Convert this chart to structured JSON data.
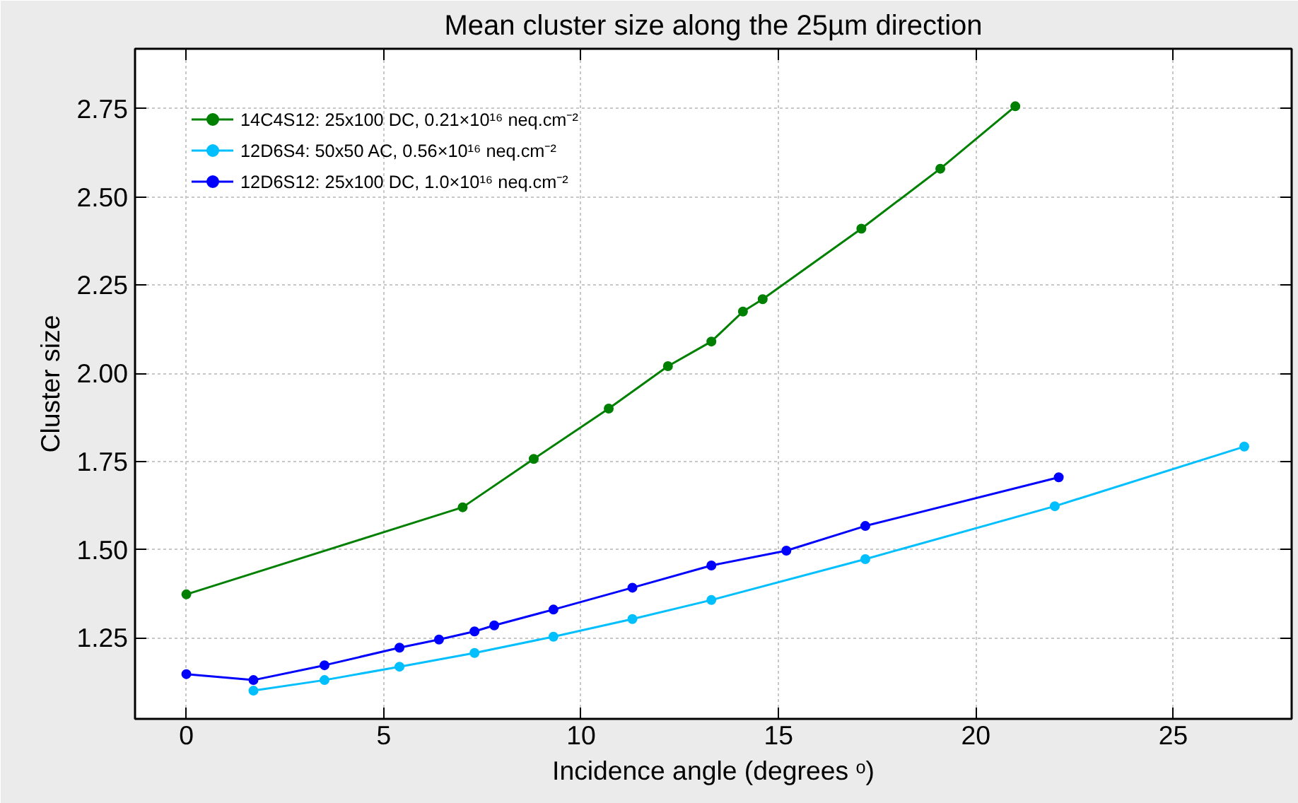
{
  "chart_data": {
    "type": "line",
    "title": "Mean cluster size along the 25µm direction",
    "xlabel": "Incidence angle (degrees ᵒ)",
    "ylabel": "Cluster size",
    "xlim": [
      -1.3,
      28.0
    ],
    "ylim": [
      1.02,
      2.92
    ],
    "xticks": [
      0,
      5,
      10,
      15,
      20,
      25
    ],
    "yticks": [
      {
        "value": 1.25,
        "label": "1.25"
      },
      {
        "value": 1.5,
        "label": "1.50"
      },
      {
        "value": 1.75,
        "label": "1.75"
      },
      {
        "value": 2.0,
        "label": "2.00"
      },
      {
        "value": 2.25,
        "label": "2.25"
      },
      {
        "value": 2.5,
        "label": "2.50"
      },
      {
        "value": 2.75,
        "label": "2.75"
      }
    ],
    "grid": true,
    "legend": "top left",
    "marker": "circle",
    "line_style": "solid",
    "series": [
      {
        "name": "14C4S12: 25x100 DC, 0.21×10¹⁶ neq.cm⁻²",
        "color": "#008000",
        "x": [
          0,
          7.0,
          8.8,
          10.7,
          12.2,
          13.3,
          14.1,
          14.6,
          17.1,
          19.1,
          21.0
        ],
        "values": [
          1.373,
          1.62,
          1.757,
          1.9,
          2.02,
          2.09,
          2.175,
          2.21,
          2.41,
          2.58,
          2.757
        ]
      },
      {
        "name": "12D6S4: 50x50 AC, 0.56×10¹⁶ neq.cm⁻²",
        "color": "#00bfff",
        "x": [
          1.7,
          3.5,
          5.4,
          7.3,
          9.3,
          11.3,
          13.3,
          17.2,
          22.0,
          26.8
        ],
        "values": [
          1.1,
          1.13,
          1.168,
          1.207,
          1.253,
          1.303,
          1.357,
          1.473,
          1.623,
          1.792
        ]
      },
      {
        "name": "12D6S12: 25x100 DC, 1.0×10¹⁶ neq.cm⁻²",
        "color": "#0000ff",
        "x": [
          0,
          1.7,
          3.5,
          5.4,
          6.4,
          7.3,
          7.8,
          9.3,
          11.3,
          13.3,
          15.2,
          17.2,
          22.1
        ],
        "values": [
          1.147,
          1.13,
          1.172,
          1.222,
          1.245,
          1.268,
          1.285,
          1.33,
          1.392,
          1.455,
          1.497,
          1.567,
          1.705
        ]
      }
    ]
  }
}
